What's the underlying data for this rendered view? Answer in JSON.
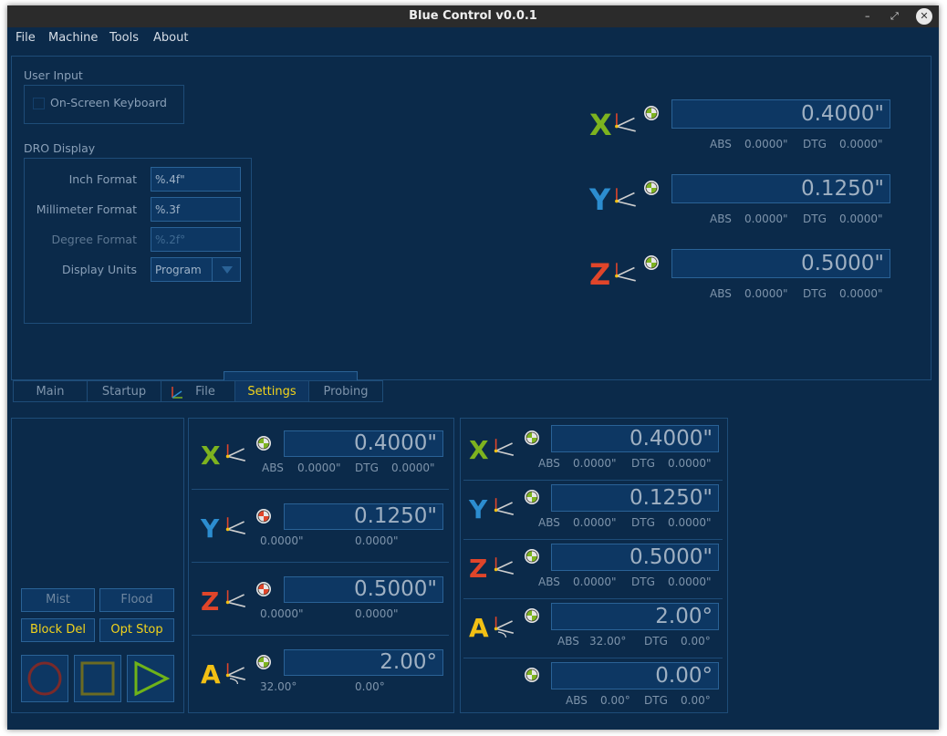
{
  "window": {
    "title": "Blue Control v0.0.1",
    "min": "–",
    "restore": "⤢",
    "close": "✕"
  },
  "menu": [
    "File",
    "Machine",
    "Tools",
    "About"
  ],
  "settings": {
    "user_input_title": "User Input",
    "keyboard_label": "On-Screen Keyboard",
    "dro_title": "DRO Display",
    "inch_label": "Inch Format",
    "inch_value": "%.4f\"",
    "mm_label": "Millimeter Format",
    "mm_value": "%.3f",
    "deg_label": "Degree Format",
    "deg_value": "%.2f°",
    "units_label": "Display Units",
    "units_value": "Program"
  },
  "big_dro": [
    {
      "axis": "X",
      "value": "0.4000\"",
      "abs_label": "ABS",
      "abs": "0.0000\"",
      "dtg_label": "DTG",
      "dtg": "0.0000\""
    },
    {
      "axis": "Y",
      "value": "0.1250\"",
      "abs_label": "ABS",
      "abs": "0.0000\"",
      "dtg_label": "DTG",
      "dtg": "0.0000\""
    },
    {
      "axis": "Z",
      "value": "0.5000\"",
      "abs_label": "ABS",
      "abs": "0.0000\"",
      "dtg_label": "DTG",
      "dtg": "0.0000\""
    }
  ],
  "tabs": [
    {
      "label": "Main"
    },
    {
      "label": "Startup"
    },
    {
      "label": "File"
    },
    {
      "label": "Settings",
      "active": true
    },
    {
      "label": "Probing"
    }
  ],
  "left_buttons": {
    "mist": "Mist",
    "flood": "Flood",
    "block_del": "Block Del",
    "opt_stop": "Opt Stop"
  },
  "mid_dro": [
    {
      "axis": "X",
      "value": "0.4000\"",
      "abs_label": "ABS",
      "abs": "0.0000\"",
      "dtg_label": "DTG",
      "dtg": "0.0000\""
    },
    {
      "axis": "Y",
      "value": "0.1250\"",
      "abs": "0.0000\"",
      "dtg": "0.0000\""
    },
    {
      "axis": "Z",
      "value": "0.5000\"",
      "abs": "0.0000\"",
      "dtg": "0.0000\""
    },
    {
      "axis": "A",
      "value": "2.00°",
      "abs": "32.00°",
      "dtg": "0.00°"
    }
  ],
  "right_dro": [
    {
      "axis": "X",
      "value": "0.4000\"",
      "abs_label": "ABS",
      "abs": "0.0000\"",
      "dtg_label": "DTG",
      "dtg": "0.0000\""
    },
    {
      "axis": "Y",
      "value": "0.1250\"",
      "abs_label": "ABS",
      "abs": "0.0000\"",
      "dtg_label": "DTG",
      "dtg": "0.0000\""
    },
    {
      "axis": "Z",
      "value": "0.5000\"",
      "abs_label": "ABS",
      "abs": "0.0000\"",
      "dtg_label": "DTG",
      "dtg": "0.0000\""
    },
    {
      "axis": "A",
      "value": "2.00°",
      "abs_label": "ABS",
      "abs": "32.00°",
      "dtg_label": "DTG",
      "dtg": "0.00°"
    },
    {
      "axis": "",
      "value": "0.00°",
      "abs_label": "ABS",
      "abs": "0.00°",
      "dtg_label": "DTG",
      "dtg": "0.00°"
    }
  ],
  "colors": {
    "bg": "#0b2a4a",
    "field": "#0d3763",
    "border": "#2a6296",
    "x": "#7db31f",
    "y": "#2c8dd0",
    "z": "#e0452a",
    "a": "#f2c014",
    "active": "#f2d31b"
  },
  "icons": {
    "home": "home-target-icon",
    "coord": "axis-triad-icon",
    "cycle_stop": "circle-stop-icon",
    "pause": "square-pause-icon",
    "start": "triangle-play-icon"
  }
}
